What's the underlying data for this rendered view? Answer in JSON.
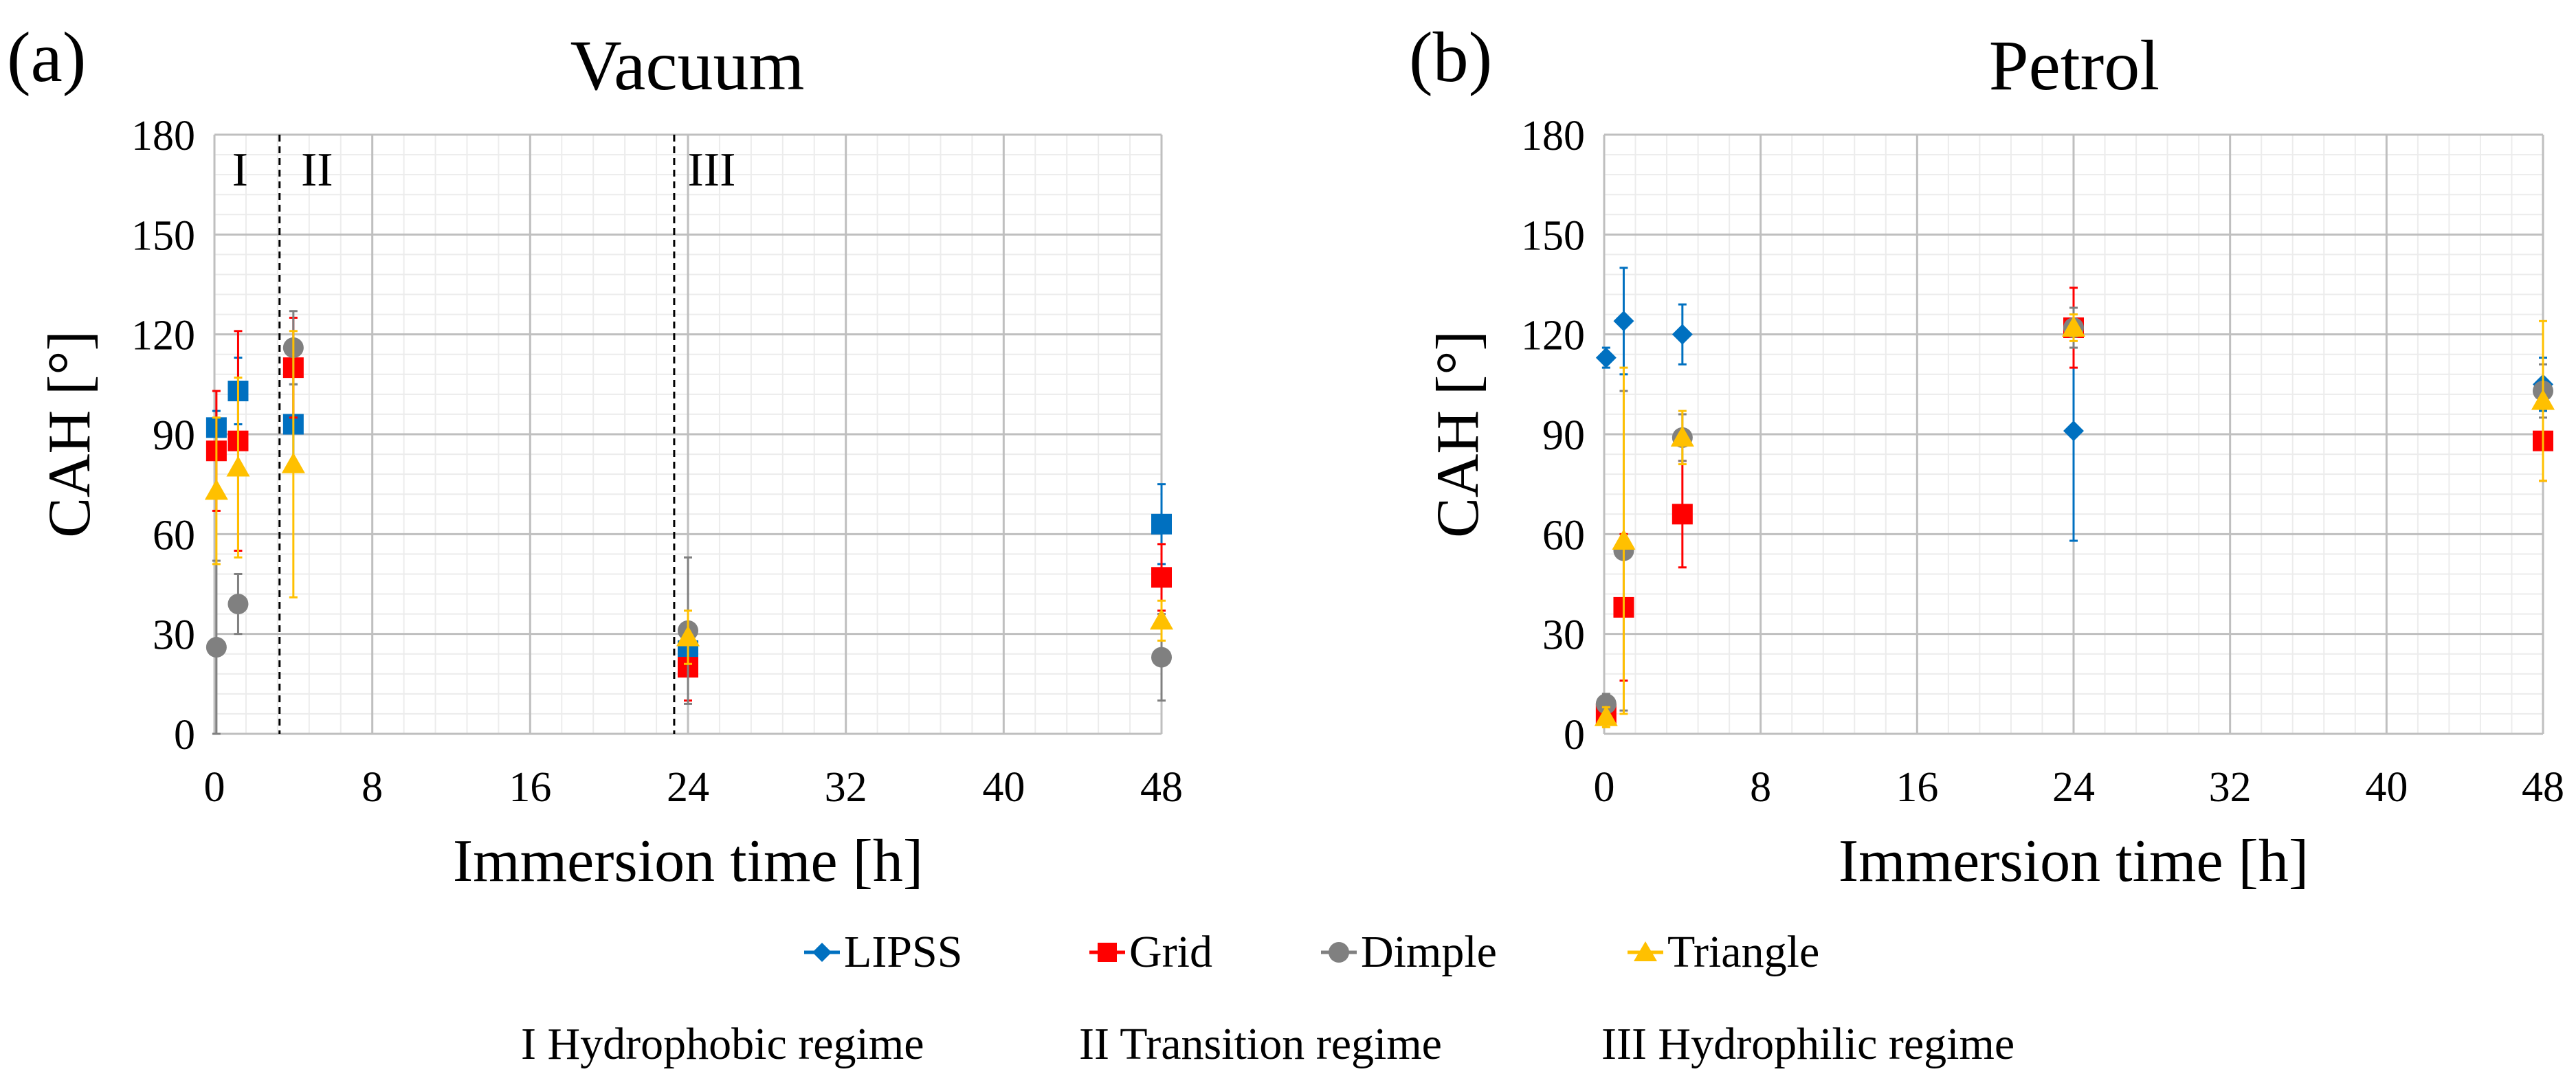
{
  "legend": {
    "items": [
      {
        "label": "LIPSS",
        "color": "#0070C0",
        "marker": "diamond"
      },
      {
        "label": "Grid",
        "color": "#FF0000",
        "marker": "square"
      },
      {
        "label": "Dimple",
        "color": "#808080",
        "marker": "circle"
      },
      {
        "label": "Triangle",
        "color": "#FFC000",
        "marker": "triangle"
      }
    ]
  },
  "regimes": {
    "labels": [
      "I Hydrophobic regime",
      "II Transition regime",
      "III Hydrophilic regime"
    ]
  },
  "chart_data": [
    {
      "type": "scatter",
      "panel_label": "(a)",
      "title": "Vacuum",
      "xlabel": "Immersion time [h]",
      "ylabel": "CAH [°]",
      "xlim": [
        0,
        48
      ],
      "ylim": [
        0,
        180
      ],
      "xticks": [
        0,
        8,
        16,
        24,
        32,
        40,
        48
      ],
      "yticks": [
        0,
        30,
        60,
        90,
        120,
        150,
        180
      ],
      "grid": true,
      "regime_lines_x": [
        3.3,
        23.3
      ],
      "regime_markers": [
        {
          "label": "I",
          "x": 1.3
        },
        {
          "label": "II",
          "x": 5.2
        },
        {
          "label": "III",
          "x": 25.2
        }
      ],
      "series": [
        {
          "name": "LIPSS",
          "marker": "square",
          "color": "#0070C0",
          "points": [
            {
              "x": 0.1,
              "y": 92,
              "err": 5
            },
            {
              "x": 1.2,
              "y": 103,
              "err": 10
            },
            {
              "x": 4,
              "y": 93,
              "err": 12
            },
            {
              "x": 24,
              "y": 25,
              "err": 7
            },
            {
              "x": 48,
              "y": 63,
              "err": 12
            }
          ]
        },
        {
          "name": "Grid",
          "marker": "square",
          "color": "#FF0000",
          "points": [
            {
              "x": 0.1,
              "y": 85,
              "err": 18
            },
            {
              "x": 1.2,
              "y": 88,
              "err": 33
            },
            {
              "x": 4,
              "y": 110,
              "err": 15
            },
            {
              "x": 24,
              "y": 20,
              "err": 10
            },
            {
              "x": 48,
              "y": 47,
              "err": 10
            }
          ]
        },
        {
          "name": "Dimple",
          "marker": "circle",
          "color": "#808080",
          "points": [
            {
              "x": 0.1,
              "y": 26,
              "err": 26
            },
            {
              "x": 1.2,
              "y": 39,
              "err": 9
            },
            {
              "x": 4,
              "y": 116,
              "err": 11
            },
            {
              "x": 24,
              "y": 31,
              "err": 22
            },
            {
              "x": 48,
              "y": 23,
              "err": 13
            }
          ]
        },
        {
          "name": "Triangle",
          "marker": "triangle",
          "color": "#FFC000",
          "points": [
            {
              "x": 0.1,
              "y": 73,
              "err": 22
            },
            {
              "x": 1.2,
              "y": 80,
              "err": 27
            },
            {
              "x": 4,
              "y": 81,
              "err": 40
            },
            {
              "x": 24,
              "y": 29,
              "err": 8
            },
            {
              "x": 48,
              "y": 34,
              "err": 6
            }
          ]
        }
      ]
    },
    {
      "type": "scatter",
      "panel_label": "(b)",
      "title": "Petrol",
      "xlabel": "Immersion time [h]",
      "ylabel": "CAH [°]",
      "xlim": [
        0,
        48
      ],
      "ylim": [
        0,
        180
      ],
      "xticks": [
        0,
        8,
        16,
        24,
        32,
        40,
        48
      ],
      "yticks": [
        0,
        30,
        60,
        90,
        120,
        150,
        180
      ],
      "grid": true,
      "series": [
        {
          "name": "LIPSS",
          "marker": "diamond",
          "color": "#0070C0",
          "points": [
            {
              "x": 0.1,
              "y": 113,
              "err": 3
            },
            {
              "x": 1,
              "y": 124,
              "err": 16
            },
            {
              "x": 4,
              "y": 120,
              "err": 9
            },
            {
              "x": 24,
              "y": 91,
              "err": 33
            },
            {
              "x": 48,
              "y": 105,
              "err": 8
            }
          ]
        },
        {
          "name": "Grid",
          "marker": "square",
          "color": "#FF0000",
          "points": [
            {
              "x": 0.1,
              "y": 6,
              "err": 3
            },
            {
              "x": 1,
              "y": 38,
              "err": 22
            },
            {
              "x": 4,
              "y": 66,
              "err": 16
            },
            {
              "x": 24,
              "y": 122,
              "err": 12
            },
            {
              "x": 48,
              "y": 88,
              "err": 12
            }
          ]
        },
        {
          "name": "Dimple",
          "marker": "circle",
          "color": "#808080",
          "points": [
            {
              "x": 0.1,
              "y": 9,
              "err": 3
            },
            {
              "x": 1,
              "y": 55,
              "err": 48
            },
            {
              "x": 4,
              "y": 89,
              "err": 7
            },
            {
              "x": 24,
              "y": 122,
              "err": 6
            },
            {
              "x": 48,
              "y": 103,
              "err": 8
            }
          ]
        },
        {
          "name": "Triangle",
          "marker": "triangle",
          "color": "#FFC000",
          "points": [
            {
              "x": 0.1,
              "y": 5,
              "err": 3
            },
            {
              "x": 1,
              "y": 58,
              "err": 52
            },
            {
              "x": 4,
              "y": 89,
              "err": 8
            },
            {
              "x": 24,
              "y": 122,
              "err": 4
            },
            {
              "x": 48,
              "y": 100,
              "err": 24
            }
          ]
        }
      ]
    }
  ]
}
